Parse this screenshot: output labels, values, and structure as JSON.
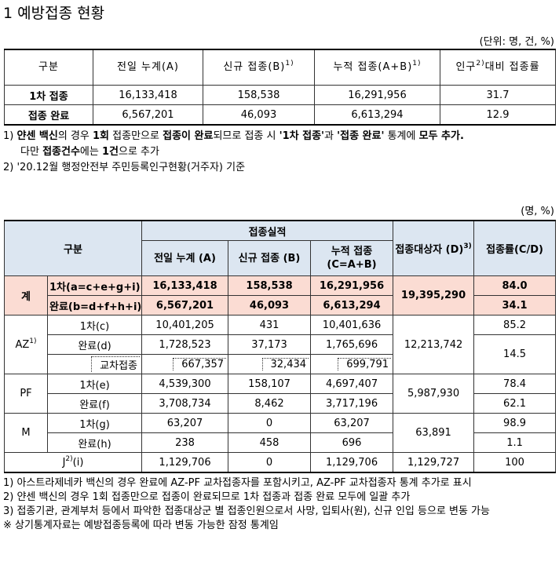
{
  "title": "1 예방접종 현황",
  "table1": {
    "unit": "(단위: 명, 건, %)",
    "header": [
      {
        "text": "구분"
      },
      {
        "text": "전일 누계(A)"
      },
      {
        "text": "신규 접종(B)",
        "sup": "1)"
      },
      {
        "text": "누적 접종(A+B)",
        "sup": "1)"
      },
      {
        "text": "인구",
        "sup": "2)",
        "after": "대비 접종률"
      }
    ],
    "rows": [
      [
        "1차 접종",
        "16,133,418",
        "158,538",
        "16,291,956",
        "31.7"
      ],
      [
        "접종 완료",
        "6,567,201",
        "46,093",
        "6,613,294",
        "12.9"
      ]
    ]
  },
  "notes1": [
    {
      "segments": [
        {
          "text": "1) ",
          "bold": false
        },
        {
          "text": "얀센 백신",
          "bold": true
        },
        {
          "text": "의 경우 ",
          "bold": false
        },
        {
          "text": "1회",
          "bold": true
        },
        {
          "text": " 접종만으로 ",
          "bold": false
        },
        {
          "text": "접종이 완료",
          "bold": true
        },
        {
          "text": "되므로 접종 시 ",
          "bold": false
        },
        {
          "text": "'1차 접종'",
          "bold": true
        },
        {
          "text": "과 ",
          "bold": false
        },
        {
          "text": "'접종 완료'",
          "bold": true
        },
        {
          "text": " 통계에 ",
          "bold": false
        },
        {
          "text": "모두 추가.",
          "bold": true
        }
      ]
    },
    {
      "segments": [
        {
          "text": "다만 ",
          "bold": false
        },
        {
          "text": "접종건수",
          "bold": true
        },
        {
          "text": "에는 ",
          "bold": false
        },
        {
          "text": "1건",
          "bold": true
        },
        {
          "text": "으로 추가",
          "bold": false
        }
      ]
    },
    {
      "segments": [
        {
          "text": "2) '20.12월 행정안전부 주민등록인구현황(거주자) 기준",
          "bold": false
        }
      ]
    }
  ],
  "table2": {
    "unit": "(명, %)",
    "header": {
      "group": "구분",
      "performance": "접종실적",
      "prev": "전일 누계 (A)",
      "new": "신규 접종 (B)",
      "cum": "누적 접종 (C=A+B)",
      "target": "접종대상자 (D)",
      "target_sup": "3)",
      "rate": "접종률(C/D)"
    },
    "rows": [
      [
        "계",
        "1차(a=c+e+g+i)",
        "16,133,418",
        "158,538",
        "16,291,956",
        "19,395,290",
        "84.0"
      ],
      [
        "완료(b=d+f+h+i)",
        "6,567,201",
        "46,093",
        "6,613,294",
        "34.1"
      ],
      [
        {
          "text": "AZ",
          "sup": "1)"
        },
        "1차(c)",
        "10,401,205",
        "431",
        "10,401,636",
        "12,213,742",
        "85.2"
      ],
      [
        "완료(d)",
        "1,728,523",
        "37,173",
        "1,765,696",
        "14.5"
      ],
      [
        "교차접종",
        "667,357",
        "32,434",
        "699,791"
      ],
      [
        "PF",
        "1차(e)",
        "4,539,300",
        "158,107",
        "4,697,407",
        "5,987,930",
        "78.4"
      ],
      [
        "완료(f)",
        "3,708,734",
        "8,462",
        "3,717,196",
        "62.1"
      ],
      [
        "M",
        "1차(g)",
        "63,207",
        "0",
        "63,207",
        "63,891",
        "98.9"
      ],
      [
        "완료(h)",
        "238",
        "458",
        "696",
        "1.1"
      ],
      [
        {
          "text": "J",
          "sup": "2)",
          "after": "(i)"
        },
        "1,129,706",
        "0",
        "1,129,706",
        "1,129,727",
        "100"
      ]
    ]
  },
  "notes2": [
    "1) 아스트라제네카 백신의 경우 완료에 AZ-PF 교차접종자를 포함시키고, AZ-PF 교차접종자 통계 추가로 표시",
    "2) 얀센 백신의 경우 1회 접종만으로 접종이 완료되므로 1차 접종과 접종 완료 모두에 일괄 추가",
    "3) 접종기관, 관계부처 등에서 파악한 접종대상군 별 접종인원으로서 사망, 입퇴사(원), 신규 인입 등으로 변동 가능",
    "※ 상기통계자료는 예방접종등록에 따라 변동 가능한 잠정 통계임"
  ]
}
